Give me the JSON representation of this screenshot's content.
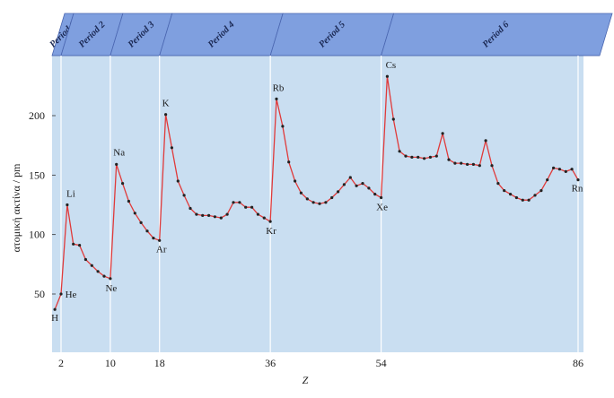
{
  "chart_data": {
    "type": "line",
    "xlabel": "Z",
    "ylabel": "ατομική ακτίνα / pm",
    "xlim": [
      0,
      88
    ],
    "ylim": [
      22,
      246
    ],
    "x_ticks": [
      2,
      10,
      18,
      36,
      54,
      86
    ],
    "y_ticks": [
      50,
      100,
      150,
      200
    ],
    "grid": "vertical lines at period boundaries",
    "colors": {
      "line": "#e03a3a",
      "point": "#222222",
      "panel": "#c9def1",
      "header": "#7f9fdf",
      "header_edge": "#4a66b0"
    },
    "periods": [
      {
        "label": "Period 1",
        "from": 0,
        "to": 2
      },
      {
        "label": "Period 2",
        "from": 2,
        "to": 10
      },
      {
        "label": "Period 3",
        "from": 10,
        "to": 18
      },
      {
        "label": "Period 4",
        "from": 18,
        "to": 36
      },
      {
        "label": "Period 5",
        "from": 36,
        "to": 54
      },
      {
        "label": "Period 6",
        "from": 54,
        "to": 88
      }
    ],
    "series": [
      {
        "x": [
          1,
          2,
          3,
          4,
          5,
          6,
          7,
          8,
          9,
          10,
          11,
          12,
          13,
          14,
          15,
          16,
          17,
          18,
          19,
          20,
          21,
          22,
          23,
          24,
          25,
          26,
          27,
          28,
          29,
          30,
          31,
          32,
          33,
          34,
          35,
          36,
          37,
          38,
          39,
          40,
          41,
          42,
          43,
          44,
          45,
          46,
          47,
          48,
          49,
          50,
          51,
          52,
          53,
          54,
          55,
          56,
          57,
          58,
          59,
          60,
          61,
          62,
          63,
          64,
          65,
          66,
          67,
          68,
          69,
          70,
          71,
          72,
          73,
          74,
          75,
          76,
          77,
          78,
          79,
          80,
          81,
          82,
          83,
          84,
          85,
          86
        ],
        "y": [
          37,
          50,
          125,
          92,
          91,
          79,
          74,
          69,
          65,
          63,
          159,
          143,
          128,
          118,
          110,
          103,
          97,
          95,
          201,
          173,
          145,
          133,
          122,
          117,
          116,
          116,
          115,
          114,
          117,
          127,
          127,
          123,
          123,
          117,
          114,
          111,
          214,
          191,
          161,
          145,
          135,
          130,
          127,
          126,
          127,
          131,
          136,
          142,
          148,
          141,
          143,
          139,
          134,
          131,
          233,
          197,
          170,
          166,
          165,
          165,
          164,
          165,
          166,
          185,
          163,
          160,
          160,
          159,
          159,
          158,
          179,
          158,
          143,
          137,
          134,
          131,
          129,
          129,
          133,
          137,
          146,
          156,
          155,
          153,
          155,
          146
        ]
      }
    ],
    "labels": [
      {
        "text": "H",
        "z": 1
      },
      {
        "text": "He",
        "z": 2
      },
      {
        "text": "Li",
        "z": 3
      },
      {
        "text": "Na",
        "z": 11
      },
      {
        "text": "Ne",
        "z": 10
      },
      {
        "text": "K",
        "z": 19
      },
      {
        "text": "Ar",
        "z": 18
      },
      {
        "text": "Rb",
        "z": 37
      },
      {
        "text": "Kr",
        "z": 36
      },
      {
        "text": "Cs",
        "z": 55
      },
      {
        "text": "Xe",
        "z": 54
      },
      {
        "text": "Rn",
        "z": 86
      }
    ]
  }
}
